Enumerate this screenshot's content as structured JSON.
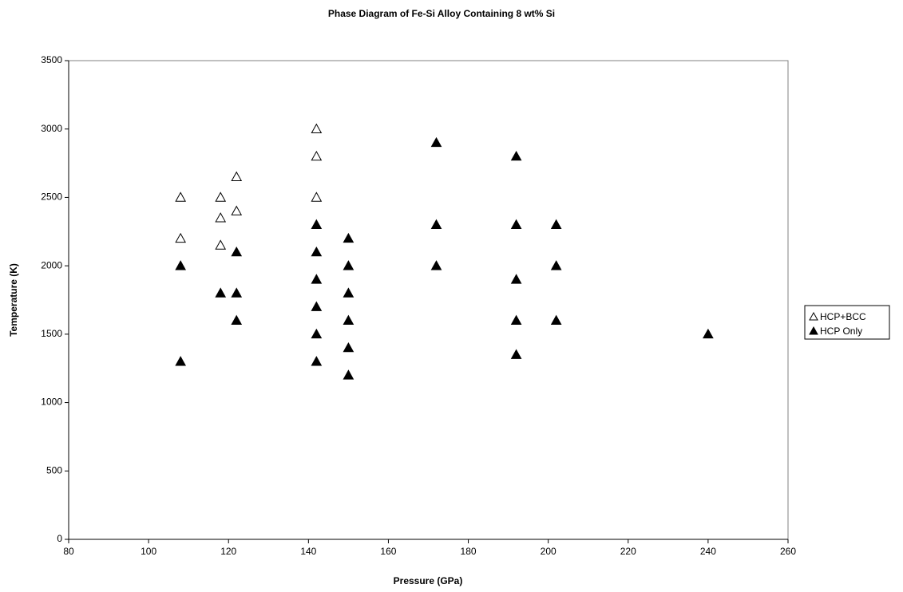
{
  "chart_data": {
    "type": "scatter",
    "title": "Phase Diagram of Fe-Si Alloy Containing 8 wt% Si",
    "x_label": "Pressure (GPa)",
    "y_label": "Temperature (K)",
    "xlim": [
      80,
      260
    ],
    "ylim": [
      0,
      3500
    ],
    "xticks": [
      80,
      100,
      120,
      140,
      160,
      180,
      200,
      220,
      240,
      260
    ],
    "yticks": [
      0,
      500,
      1000,
      1500,
      2000,
      2500,
      3000,
      3500
    ],
    "grid": false,
    "legend": "right",
    "series": [
      {
        "name": "HCP+BCC",
        "color": "#000000",
        "filled": false,
        "x": [
          108,
          108,
          118,
          118,
          118,
          122,
          122,
          142,
          142,
          142
        ],
        "y": [
          2500,
          2200,
          2500,
          2350,
          2150,
          2650,
          2400,
          3000,
          2800,
          2500
        ]
      },
      {
        "name": "HCP Only",
        "color": "#000000",
        "filled": true,
        "x": [
          108,
          108,
          118,
          122,
          122,
          122,
          142,
          142,
          142,
          142,
          142,
          142,
          150,
          150,
          150,
          150,
          150,
          150,
          172,
          172,
          172,
          192,
          192,
          192,
          192,
          192,
          202,
          202,
          202,
          240
        ],
        "y": [
          2000,
          1300,
          1800,
          2100,
          1800,
          1600,
          2300,
          2100,
          1900,
          1700,
          1500,
          1300,
          2200,
          2000,
          1800,
          1600,
          1400,
          1200,
          2900,
          2300,
          2000,
          2800,
          2300,
          1900,
          1600,
          1350,
          2300,
          2000,
          1600,
          1500
        ]
      }
    ]
  }
}
